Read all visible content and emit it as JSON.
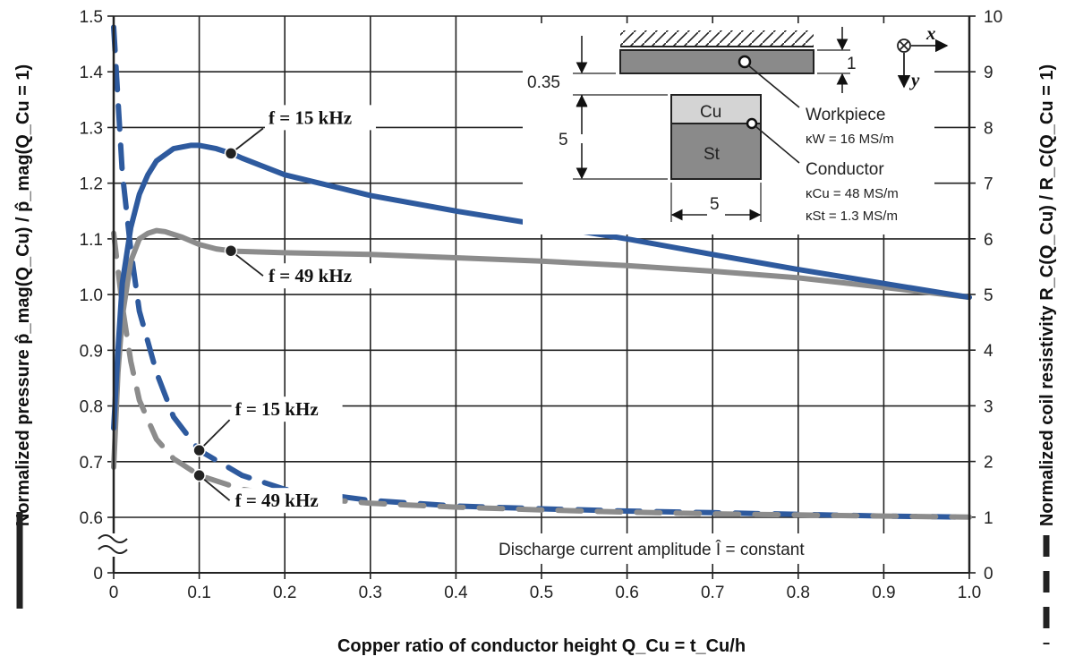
{
  "chart_data": {
    "type": "line",
    "xlabel": "Copper ratio of conductor height Q_Cu = t_Cu/h",
    "ylabel_left": "Normalized pressure p̂_mag(Q_Cu) / p̂_mag(Q_Cu = 1)",
    "ylabel_right": "Normalized coil resistivity R_C(Q_Cu) / R_C(Q_Cu = 1)",
    "xlim": [
      0,
      1.0
    ],
    "x_ticks": [
      "0",
      "0.1",
      "0.2",
      "0.3",
      "0.4",
      "0.5",
      "0.6",
      "0.7",
      "0.8",
      "0.9",
      "1.0"
    ],
    "ylim_left_broken": [
      0.55,
      1.5
    ],
    "y_ticks_left": [
      "0",
      "0.6",
      "0.7",
      "0.8",
      "0.9",
      "1.0",
      "1.1",
      "1.2",
      "1.3",
      "1.4",
      "1.5"
    ],
    "ylim_right": [
      0,
      10
    ],
    "y_ticks_right": [
      "0",
      "1",
      "2",
      "3",
      "4",
      "5",
      "6",
      "7",
      "8",
      "9",
      "10"
    ],
    "grid": true,
    "legend_note": "Discharge current amplitude Î = constant",
    "series": [
      {
        "name": "f = 15 kHz",
        "quantity": "pressure",
        "axis": "left",
        "color": "#2e5a9e",
        "style": "solid",
        "x": [
          0,
          0.005,
          0.01,
          0.02,
          0.03,
          0.04,
          0.05,
          0.07,
          0.09,
          0.1,
          0.12,
          0.14,
          0.15,
          0.2,
          0.3,
          0.4,
          0.5,
          0.6,
          0.7,
          0.8,
          0.9,
          1.0
        ],
        "y": [
          0.76,
          0.9,
          1.02,
          1.12,
          1.18,
          1.215,
          1.24,
          1.262,
          1.268,
          1.268,
          1.262,
          1.252,
          1.245,
          1.215,
          1.178,
          1.15,
          1.125,
          1.1,
          1.072,
          1.045,
          1.02,
          0.995
        ]
      },
      {
        "name": "f = 49 kHz",
        "quantity": "pressure",
        "axis": "left",
        "color": "#8c8c8c",
        "style": "solid",
        "x": [
          0,
          0.005,
          0.01,
          0.02,
          0.03,
          0.04,
          0.05,
          0.06,
          0.08,
          0.1,
          0.12,
          0.14,
          0.2,
          0.3,
          0.4,
          0.5,
          0.6,
          0.7,
          0.8,
          0.9,
          1.0
        ],
        "y": [
          0.69,
          0.86,
          0.96,
          1.06,
          1.1,
          1.11,
          1.115,
          1.113,
          1.103,
          1.09,
          1.082,
          1.078,
          1.075,
          1.072,
          1.066,
          1.06,
          1.052,
          1.042,
          1.03,
          1.013,
          0.995
        ]
      },
      {
        "name": "f = 15 kHz",
        "quantity": "resistivity",
        "axis": "right",
        "color": "#2e5a9e",
        "style": "dashed",
        "x": [
          0,
          0.01,
          0.02,
          0.03,
          0.05,
          0.07,
          0.1,
          0.15,
          0.2,
          0.3,
          0.4,
          0.5,
          0.6,
          0.7,
          0.8,
          0.9,
          1.0
        ],
        "y": [
          9.8,
          7.2,
          5.8,
          4.7,
          3.6,
          2.8,
          2.2,
          1.75,
          1.5,
          1.3,
          1.2,
          1.15,
          1.11,
          1.08,
          1.05,
          1.02,
          1.0
        ]
      },
      {
        "name": "f = 49 kHz",
        "quantity": "resistivity",
        "axis": "right",
        "color": "#8c8c8c",
        "style": "dashed",
        "x": [
          0,
          0.01,
          0.02,
          0.03,
          0.05,
          0.07,
          0.1,
          0.15,
          0.2,
          0.3,
          0.4,
          0.5,
          0.6,
          0.7,
          0.8,
          0.9,
          1.0
        ],
        "y": [
          6.1,
          4.8,
          3.8,
          3.1,
          2.4,
          2.05,
          1.75,
          1.5,
          1.38,
          1.25,
          1.18,
          1.13,
          1.09,
          1.06,
          1.04,
          1.02,
          1.0
        ]
      }
    ],
    "annotations": [
      {
        "label": "f = 15 kHz",
        "series": 0
      },
      {
        "label": "f = 49 kHz",
        "series": 1
      },
      {
        "label": "f = 15 kHz",
        "series": 2
      },
      {
        "label": "f = 49 kHz",
        "series": 3
      }
    ]
  },
  "inset": {
    "dim_035": "0.35",
    "dim_1": "1",
    "dim_5_vertical": "5",
    "dim_5_horizontal": "5",
    "cu_label": "Cu",
    "st_label": "St",
    "workpiece_label": "Workpiece",
    "kappa_w": "κW = 16 MS/m",
    "conductor_label": "Conductor",
    "kappa_cu": "κCu = 48 MS/m",
    "kappa_st": "κSt = 1.3 MS/m",
    "axis_x": "x",
    "axis_y": "y"
  }
}
